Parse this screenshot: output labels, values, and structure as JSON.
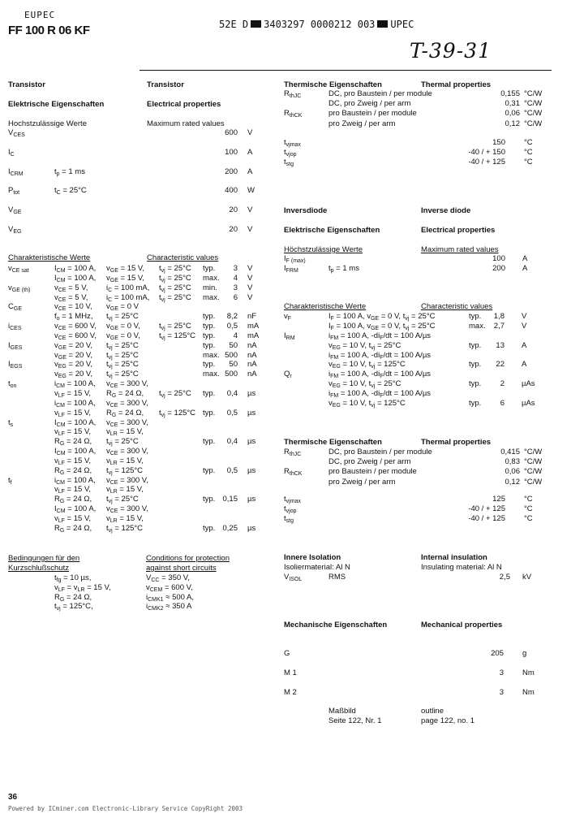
{
  "header": {
    "brand": "EUPEC",
    "part_number": "FF 100 R 06 KF",
    "scan_code_a": "52E D",
    "scan_code_b": "3403297 0000212 003",
    "scan_code_c": "UPEC",
    "handwritten_note": "T-39-31"
  },
  "transistor": {
    "title_de": "Transistor",
    "title_en": "Transistor",
    "elec_de": "Elektrische Eigenschaften",
    "elec_en": "Electrical properties",
    "max_de": "Hochstzulässige Werte",
    "max_en": "Maximum rated values",
    "max_rows": [
      {
        "s": "V_{CES}",
        "v": "600",
        "u": "V"
      },
      {
        "s": "I_{C}",
        "v": "100",
        "u": "A"
      },
      {
        "s": "I_{CRM}",
        "c1": "t_{p} = 1 ms",
        "v": "200",
        "u": "A"
      },
      {
        "s": "P_{tot}",
        "c1": "t_{C} = 25°C",
        "v": "400",
        "u": "W"
      },
      {
        "s": "V_{GE}",
        "v": "20",
        "u": "V"
      },
      {
        "s": "V_{EG}",
        "v": "20",
        "u": "V"
      }
    ],
    "char_de": "Charakteristische Werte",
    "char_en": "Characteristic values",
    "char_rows": [
      {
        "s": "v_{CE sat}",
        "c1": "I_{CM} = 100 A,",
        "c2": "v_{GE} = 15 V,",
        "c3": "t_{vj} = 25°C",
        "q": "typ.",
        "v": "3",
        "u": "V"
      },
      {
        "c1": "I_{CM} = 100 A,",
        "c2": "v_{GE} = 15 V,",
        "c3": "t_{vj} = 25°C",
        "q": "max.",
        "v": "4",
        "u": "V"
      },
      {
        "s": "v_{GE (th)}",
        "c1": "v_{CE} = 5 V,",
        "c2": "i_{C} = 100 mA,",
        "c3": "t_{vj} = 25°C",
        "q": "min.",
        "v": "3",
        "u": "V"
      },
      {
        "c1": "v_{CE} = 5 V,",
        "c2": "i_{C} = 100 mA,",
        "c3": "t_{vj} = 25°C",
        "q": "max.",
        "v": "6",
        "u": "V"
      },
      {
        "s": "C_{GE}",
        "c1": "v_{CE} = 10 V,",
        "c2": "v_{GE} = 0 V"
      },
      {
        "c1": "f_{o} = 1 MHz,",
        "c2": "t_{vj} = 25°C",
        "q": "typ.",
        "v": "8,2",
        "u": "nF"
      },
      {
        "s": "i_{CES}",
        "c1": "v_{CE} = 600 V,",
        "c2": "v_{GE} = 0 V,",
        "c3": "t_{vj} = 25°C",
        "q": "typ.",
        "v": "0,5",
        "u": "mA"
      },
      {
        "c1": "v_{CE} = 600 V,",
        "c2": "v_{GE} = 0 V,",
        "c3": "t_{vj} = 125°C",
        "q": "typ.",
        "v": "4",
        "u": "mA"
      },
      {
        "s": "I_{GES}",
        "c1": "v_{GE} = 20 V,",
        "c2": "t_{vj} = 25°C",
        "q": "typ.",
        "v": "50",
        "u": "nA"
      },
      {
        "c1": "v_{GE} = 20 V,",
        "c2": "t_{vj} = 25°C",
        "q": "max.",
        "v": "500",
        "u": "nA"
      },
      {
        "s": "I_{EGS}",
        "c1": "v_{EG} = 20 V,",
        "c2": "t_{vj} = 25°C",
        "q": "typ.",
        "v": "50",
        "u": "nA"
      },
      {
        "c1": "v_{EG} = 20 V,",
        "c2": "t_{vj} = 25°C",
        "q": "max.",
        "v": "500",
        "u": "nA"
      },
      {
        "s": "t_{on}",
        "c1": "i_{CM} = 100 A,",
        "c2": "v_{CE} = 300 V,"
      },
      {
        "c1": "v_{LF} = 15 V,",
        "c2": "R_{G} = 24 Ω,",
        "c3": "t_{vj} = 25°C",
        "q": "typ.",
        "v": "0,4",
        "u": "µs"
      },
      {
        "c1": "i_{CM} = 100 A,",
        "c2": "v_{CE} = 300 V,"
      },
      {
        "c1": "v_{LF} = 15 V,",
        "c2": "R_{G} = 24 Ω,",
        "c3": "t_{vj} = 125°C",
        "q": "typ.",
        "v": "0,5",
        "u": "µs"
      },
      {
        "s": "t_{s}",
        "c1": "I_{CM} = 100 A,",
        "c2": "v_{CE} = 300 V,"
      },
      {
        "c1": "v_{LF} = 15 V,",
        "c2": "v_{LR} = 15 V,"
      },
      {
        "c1": "R_{G} = 24 Ω,",
        "c2": "t_{vj} = 25°C",
        "q": "typ.",
        "v": "0,4",
        "u": "µs"
      },
      {
        "c1": "I_{CM} = 100 A,",
        "c2": "v_{CE} = 300 V,"
      },
      {
        "c1": "v_{LF} = 15 V,",
        "c2": "v_{LR} = 15 V,"
      },
      {
        "c1": "R_{G} = 24 Ω,",
        "c2": "t_{vj} = 125°C",
        "q": "typ.",
        "v": "0,5",
        "u": "µs"
      },
      {
        "s": "t_{f}",
        "c1": "i_{CM} = 100 A,",
        "c2": "v_{CE} = 300 V,"
      },
      {
        "c1": "v_{LF} = 15 V,",
        "c2": "v_{LR} = 15 V,"
      },
      {
        "c1": "R_{G} = 24 Ω,",
        "c2": "t_{vj} = 25°C",
        "q": "typ.",
        "v": "0,15",
        "u": "µs"
      },
      {
        "c1": "I_{CM} = 100 A,",
        "c2": "v_{CE} = 300 V,"
      },
      {
        "c1": "v_{LF} = 15 V,",
        "c2": "v_{LR} = 15 V,"
      },
      {
        "c1": "R_{G} = 24 Ω,",
        "c2": "t_{vj} = 125°C",
        "q": "typ.",
        "v": "0,25",
        "u": "µs"
      }
    ],
    "thermal_de": "Thermische Eigenschaften",
    "thermal_en": "Thermal properties",
    "thermal_rows": [
      {
        "s": "R_{thJC}",
        "c1": "DC, pro Baustein / per module",
        "v": "0,155",
        "u": "°C/W"
      },
      {
        "c1": "DC, pro Zweig / per arm",
        "v": "0,31",
        "u": "°C/W"
      },
      {
        "s": "R_{thCK}",
        "c1": "pro Baustein / per module",
        "v": "0,06",
        "u": "°C/W"
      },
      {
        "c1": "pro Zweig / per arm",
        "v": "0,12",
        "u": "°C/W"
      }
    ],
    "temp_rows": [
      {
        "s": "t_{vjmax}",
        "v": "150",
        "u": "°C"
      },
      {
        "s": "t_{vjop}",
        "v": "-40 / + 150",
        "u": "°C"
      },
      {
        "s": "t_{stg}",
        "v": "-40 / + 125",
        "u": "°C"
      }
    ]
  },
  "short_circuit": {
    "title_de_1": "Bedingungen für den",
    "title_de_2": "Kurzschlußschutz",
    "title_en_1": "Conditions for protection",
    "title_en_2": "against short circuits",
    "rows": [
      {
        "c1": "t_{fg} = 10 µs,",
        "c2": "V_{CC} = 350 V,"
      },
      {
        "c1": "v_{LF} = v_{LR} = 15 V,",
        "c2": "v_{CEM} = 600 V,"
      },
      {
        "c1": "R_{G} = 24 Ω,",
        "c2": "i_{CMK1} ≈ 500 A,"
      },
      {
        "c1": "t_{vj} = 125°C,",
        "c2": "i_{CMK2} ≈ 350 A"
      }
    ]
  },
  "diode": {
    "title_de": "Inversdiode",
    "title_en": "Inverse diode",
    "elec_de": "Elektrische Eigenschaften",
    "elec_en": "Electrical properties",
    "max_de": "Höchstzulässige Werte",
    "max_en": "Maximum rated values",
    "max_rows": [
      {
        "s": "I_{F (max)}",
        "v": "100",
        "u": "A"
      },
      {
        "s": "I_{FRM}",
        "c1": "t_{p} = 1 ms",
        "v": "200",
        "u": "A"
      }
    ],
    "char_de": "Charakteristische Werte",
    "char_en": "Characteristic values",
    "char_rows": [
      {
        "s": "v_{F}",
        "c1": "I_{F} = 100 A, v_{GE} = 0 V, t_{vj} = 25°C",
        "q": "typ.",
        "v": "1,8",
        "u": "V"
      },
      {
        "c1": "I_{F} = 100 A, v_{GE} = 0 V, t_{vj} = 25°C",
        "q": "max.",
        "v": "2,7",
        "u": "V"
      },
      {
        "s": "I_{RM}",
        "c1": "i_{FM} = 100 A, -di_{F}/dt = 100 A/µs"
      },
      {
        "c1": "v_{EG} = 10 V, t_{vj} = 25°C",
        "q": "typ.",
        "v": "13",
        "u": "A"
      },
      {
        "c1": "i_{FM} = 100 A, -di_{F}/dt = 100 A/µs"
      },
      {
        "c1": "v_{EG} = 10 V, t_{vj} = 125°C",
        "q": "typ.",
        "v": "22",
        "u": "A"
      },
      {
        "s": "Q_{r}",
        "c1": "i_{FM} = 100 A, -di_{F}/dt = 100 A/µs"
      },
      {
        "c1": "v_{EG} = 10 V, t_{vj} = 25°C",
        "q": "typ.",
        "v": "2",
        "u": "µAs"
      },
      {
        "c1": "i_{FM} = 100 A, -di_{F}/dt = 100 A/µs"
      },
      {
        "c1": "v_{EG} = 10 V, t_{vj} = 125°C",
        "q": "typ.",
        "v": "6",
        "u": "µAs"
      }
    ],
    "thermal_de": "Thermische Eigenschaften",
    "thermal_en": "Thermal properties",
    "thermal_rows": [
      {
        "s": "R_{thJC}",
        "c1": "DC, pro Baustein / per module",
        "v": "0,415",
        "u": "°C/W"
      },
      {
        "c1": "DC, pro Zweig / per arm",
        "v": "0,83",
        "u": "°C/W"
      },
      {
        "s": "R_{thCK}",
        "c1": "pro Baustein / per module",
        "v": "0,06",
        "u": "°C/W"
      },
      {
        "c1": "pro Zweig / per arm",
        "v": "0,12",
        "u": "°C/W"
      }
    ],
    "temp_rows": [
      {
        "s": "t_{vjmax}",
        "v": "125",
        "u": "°C"
      },
      {
        "s": "t_{vjop}",
        "v": "-40 / + 125",
        "u": "°C"
      },
      {
        "s": "t_{stg}",
        "v": "-40 / + 125",
        "u": "°C"
      }
    ]
  },
  "isolation": {
    "title_de": "Innere Isolation",
    "title_en": "Internal insulation",
    "rows": [
      {
        "s": "Isoliermaterial: Al N",
        "c2": "Insulating material: Al N"
      },
      {
        "s": "V_{ISOL}",
        "c1": "RMS",
        "v": "2,5",
        "u": "kV"
      }
    ]
  },
  "mechanical": {
    "title_de": "Mechanische Eigenschaften",
    "title_en": "Mechanical properties",
    "rows": [
      {
        "s": "G",
        "v": "205",
        "u": "g"
      },
      {
        "s": "M 1",
        "v": "3",
        "u": "Nm"
      },
      {
        "s": "M 2",
        "v": "3",
        "u": "Nm"
      }
    ],
    "outline_de": "Maßbild",
    "outline_en": "outline",
    "page_de": "Seite 122, Nr. 1",
    "page_en": "page 122, no. 1"
  },
  "footer": {
    "page_number": "36",
    "credit": "Powered by ICminer.com Electronic-Library Service CopyRight 2003"
  }
}
